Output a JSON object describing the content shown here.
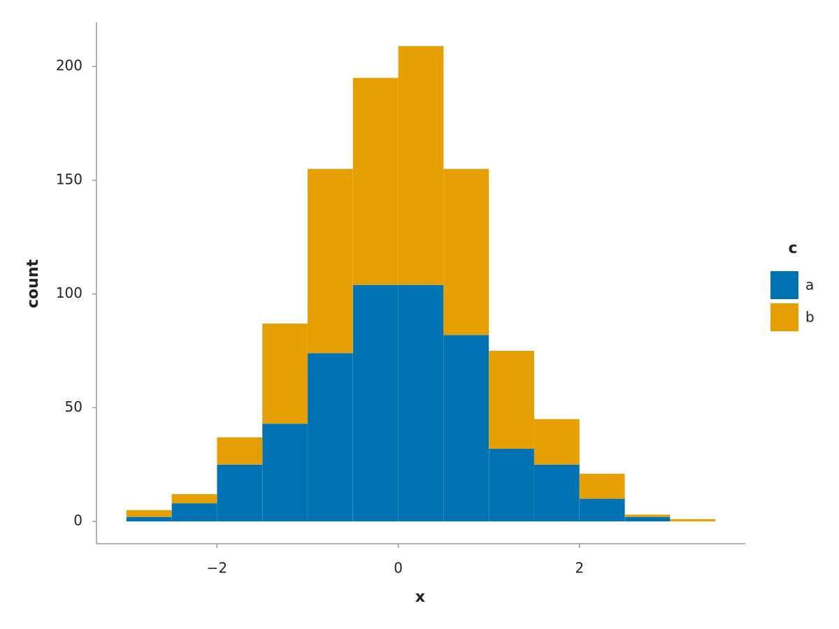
{
  "chart_data": {
    "type": "histogram",
    "stacked": true,
    "x_label": "x",
    "y_label": "count",
    "bins": [
      -3,
      -2.5,
      -2,
      -1.5,
      -1,
      -0.5,
      0,
      0.5,
      1,
      1.5,
      2,
      2.5,
      3,
      3.5
    ],
    "series": [
      {
        "name": "a",
        "color": "#0072b2",
        "values": [
          2,
          8,
          25,
          43,
          74,
          104,
          104,
          82,
          32,
          25,
          10,
          2,
          0
        ]
      },
      {
        "name": "b",
        "color": "#e69f00",
        "values": [
          3,
          4,
          12,
          44,
          81,
          91,
          105,
          73,
          43,
          20,
          11,
          1,
          1
        ]
      }
    ],
    "legend_title": "c",
    "legend": "right",
    "xlim": [
      -3.33,
      3.83
    ],
    "xticks": [
      {
        "value": -2,
        "label": "−2"
      },
      0,
      2
    ],
    "ylim": [
      -9.8,
      219.4
    ],
    "yticks": [
      0,
      50,
      100,
      150,
      200
    ],
    "axis_color": "#999999"
  }
}
